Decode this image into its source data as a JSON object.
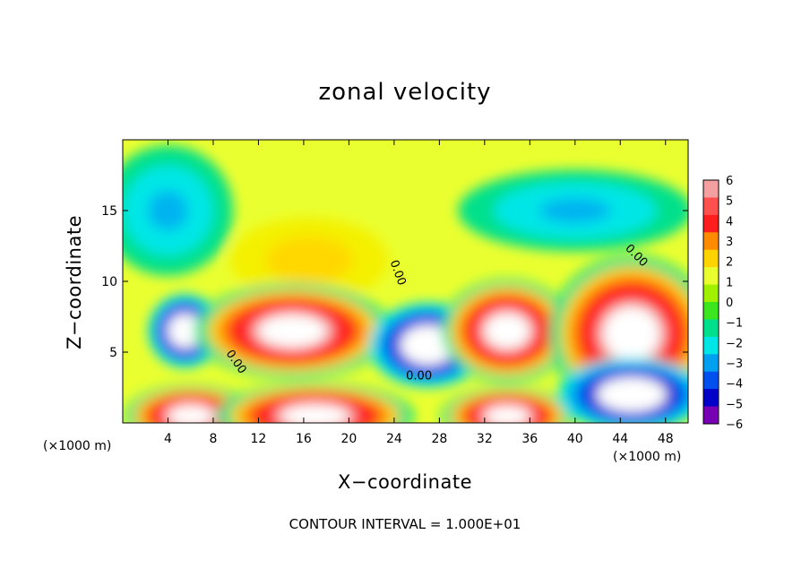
{
  "chart_data": {
    "type": "heatmap",
    "title": "zonal velocity",
    "xlabel": "X−coordinate",
    "ylabel": "Z−coordinate",
    "x_unit": "(×1000 m)",
    "footnote": "CONTOUR INTERVAL = 1.000E+01",
    "xlim": [
      0,
      50
    ],
    "ylim": [
      0,
      20
    ],
    "xticks": [
      4,
      8,
      12,
      16,
      20,
      24,
      28,
      32,
      36,
      40,
      44,
      48
    ],
    "yticks": [
      5,
      10,
      15
    ],
    "contour_labels": [
      {
        "text": "0.00",
        "x": 10,
        "y": 4.3,
        "rotate": 55
      },
      {
        "text": "0.00",
        "x": 24.3,
        "y": 10.6,
        "rotate": 70
      },
      {
        "text": "0.00",
        "x": 26.2,
        "y": 3.3,
        "rotate": 0
      },
      {
        "text": "0.00",
        "x": 45.4,
        "y": 11.8,
        "rotate": 45
      }
    ],
    "colorbar": {
      "ticks": [
        "6",
        "5",
        "4",
        "3",
        "2",
        "1",
        "0",
        "−1",
        "−2",
        "−3",
        "−4",
        "−5",
        "−6"
      ],
      "colors": [
        "#f4a0a0",
        "#ff5050",
        "#ff1e1e",
        "#ff8c00",
        "#ffd400",
        "#eaff30",
        "#a0f000",
        "#3ce61e",
        "#00e08c",
        "#00e6e6",
        "#00a0f0",
        "#0050f0",
        "#0000c8",
        "#7800b4"
      ]
    },
    "field": {
      "background_value": 1,
      "regions": [
        {
          "kind": "yellow",
          "x": 16.5,
          "y": 11.5,
          "rx": 7,
          "ry": 3
        },
        {
          "kind": "cyan",
          "x": 40,
          "y": 15,
          "rx": 9,
          "ry": 2.5
        },
        {
          "kind": "cyan",
          "x": 4,
          "y": 15,
          "rx": 5,
          "ry": 4
        },
        {
          "kind": "blue",
          "x": 5.5,
          "y": 6.5,
          "rx": 2.5,
          "ry": 2
        },
        {
          "kind": "red",
          "x": 15,
          "y": 6.5,
          "rx": 6,
          "ry": 2.3
        },
        {
          "kind": "blue",
          "x": 27,
          "y": 5.5,
          "rx": 4,
          "ry": 2.3
        },
        {
          "kind": "red",
          "x": 34,
          "y": 6.5,
          "rx": 4,
          "ry": 2.5
        },
        {
          "kind": "red",
          "x": 45,
          "y": 6.3,
          "rx": 5,
          "ry": 3.8
        },
        {
          "kind": "red",
          "x": 6,
          "y": 0.5,
          "rx": 4,
          "ry": 1.5
        },
        {
          "kind": "red",
          "x": 17,
          "y": 0.5,
          "rx": 6,
          "ry": 1.6
        },
        {
          "kind": "red",
          "x": 34,
          "y": 0.5,
          "rx": 4,
          "ry": 1.4
        },
        {
          "kind": "blue",
          "x": 45,
          "y": 2,
          "rx": 5,
          "ry": 2
        }
      ]
    }
  }
}
